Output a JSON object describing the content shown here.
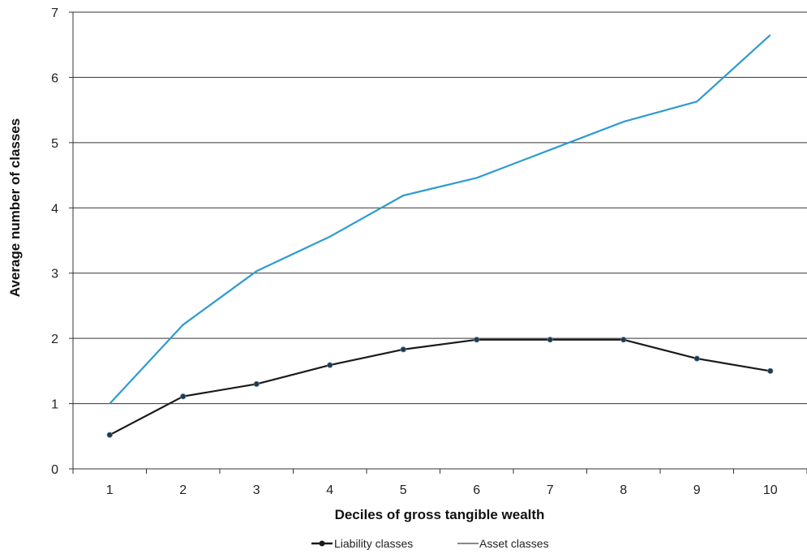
{
  "chart_data": {
    "type": "line",
    "title": "",
    "xlabel": "Deciles of gross tangible wealth",
    "ylabel": "Average number of classes",
    "categories": [
      "1",
      "2",
      "3",
      "4",
      "5",
      "6",
      "7",
      "8",
      "9",
      "10"
    ],
    "yticks": [
      "0",
      "1",
      "2",
      "3",
      "4",
      "5",
      "6",
      "7"
    ],
    "ylim": [
      0,
      7
    ],
    "grid": "horizontal",
    "legend_position": "bottom-center",
    "series": [
      {
        "name": "Liability classes",
        "color": "#1a1a1a",
        "marker_color": "#1f3a4d",
        "markers": true,
        "values": [
          0.52,
          1.11,
          1.3,
          1.59,
          1.83,
          1.98,
          1.98,
          1.98,
          1.69,
          1.5
        ]
      },
      {
        "name": "Asset classes",
        "color": "#2e9bd0",
        "legend_color": "#888888",
        "markers": false,
        "values": [
          1.0,
          2.21,
          3.03,
          3.56,
          4.19,
          4.46,
          4.89,
          5.32,
          5.63,
          6.65
        ]
      }
    ]
  }
}
